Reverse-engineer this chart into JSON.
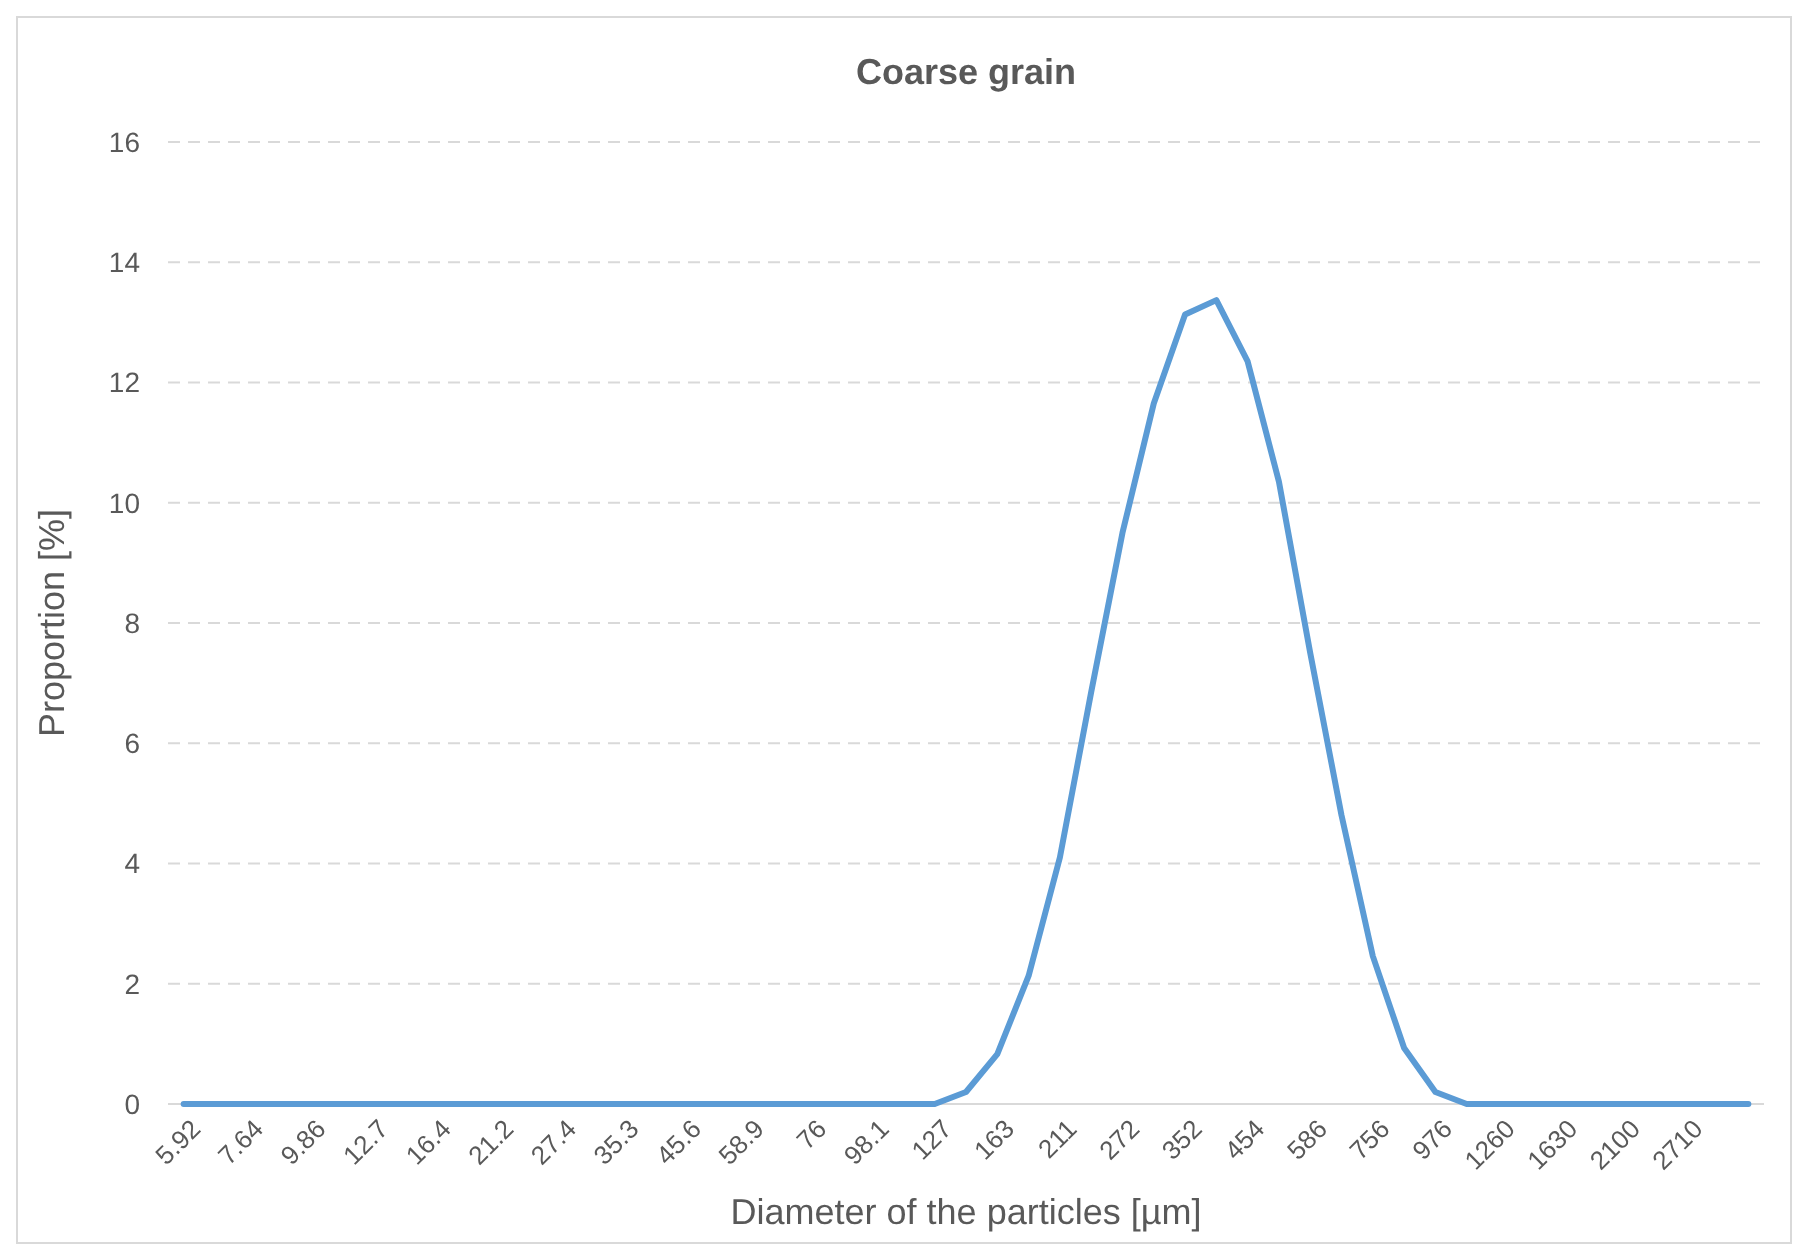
{
  "chart_data": {
    "type": "line",
    "title": "Coarse grain",
    "xlabel": "Diameter of the particles [µm]",
    "ylabel": "Proportion [%]",
    "categories": [
      "5.92",
      null,
      "7.64",
      null,
      "9.86",
      null,
      "12.7",
      null,
      "16.4",
      null,
      "21.2",
      null,
      "27.4",
      null,
      "35.3",
      null,
      "45.6",
      null,
      "58.9",
      null,
      "76",
      null,
      "98.1",
      null,
      "127",
      null,
      "163",
      null,
      "211",
      null,
      "272",
      null,
      "352",
      null,
      "454",
      null,
      "586",
      null,
      "756",
      null,
      "976",
      null,
      "1260",
      null,
      "1630",
      null,
      "2100",
      null,
      "2710",
      null,
      null
    ],
    "series": [
      {
        "color": "#5b9bd5",
        "values": [
          0,
          0,
          0,
          0,
          0,
          0,
          0,
          0,
          0,
          0,
          0,
          0,
          0,
          0,
          0,
          0,
          0,
          0,
          0,
          0,
          0,
          0,
          0,
          0,
          0,
          0.2,
          0.83,
          2.13,
          4.1,
          6.85,
          9.5,
          11.65,
          13.13,
          13.37,
          12.35,
          10.35,
          7.5,
          4.8,
          2.46,
          0.93,
          0.2,
          0,
          0,
          0,
          0,
          0,
          0,
          0,
          0,
          0,
          0
        ]
      }
    ],
    "ylim": [
      0,
      16
    ],
    "yticks": [
      0,
      2,
      4,
      6,
      8,
      10,
      12,
      14,
      16
    ],
    "grid": "y",
    "marker": "none",
    "line_style": "solid"
  }
}
